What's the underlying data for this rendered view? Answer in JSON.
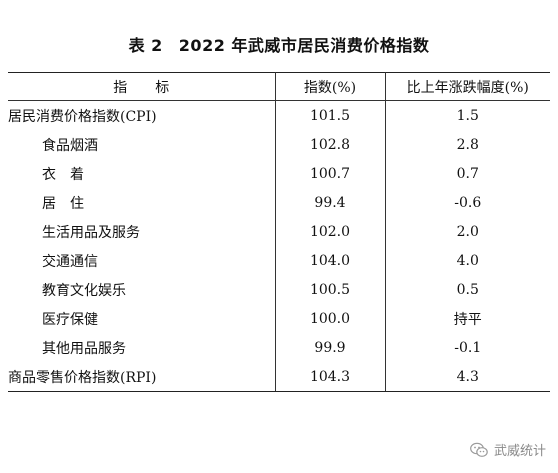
{
  "title": {
    "table_no": "表 2",
    "text": "2022 年武威市居民消费价格指数"
  },
  "table": {
    "headers": [
      "指标",
      "指数(%)",
      "比上年涨跌幅度(%)"
    ],
    "rows": [
      {
        "label": "居民消费价格指数(CPI)",
        "index": "101.5",
        "change": "1.5"
      },
      {
        "label": "食品烟酒",
        "index": "102.8",
        "change": "2.8"
      },
      {
        "label": "衣着",
        "index": "100.7",
        "change": "0.7"
      },
      {
        "label": "居住",
        "index": "99.4",
        "change": "-0.6"
      },
      {
        "label": "生活用品及服务",
        "index": "102.0",
        "change": "2.0"
      },
      {
        "label": "交通通信",
        "index": "104.0",
        "change": "4.0"
      },
      {
        "label": "教育文化娱乐",
        "index": "100.5",
        "change": "0.5"
      },
      {
        "label": "医疗保健",
        "index": "100.0",
        "change": "持平"
      },
      {
        "label": "其他用品服务",
        "index": "99.9",
        "change": "-0.1"
      },
      {
        "label": "商品零售价格指数(RPI)",
        "index": "104.3",
        "change": "4.3"
      }
    ]
  },
  "watermark": {
    "text": "武威统计",
    "icon": "wechat-icon"
  }
}
